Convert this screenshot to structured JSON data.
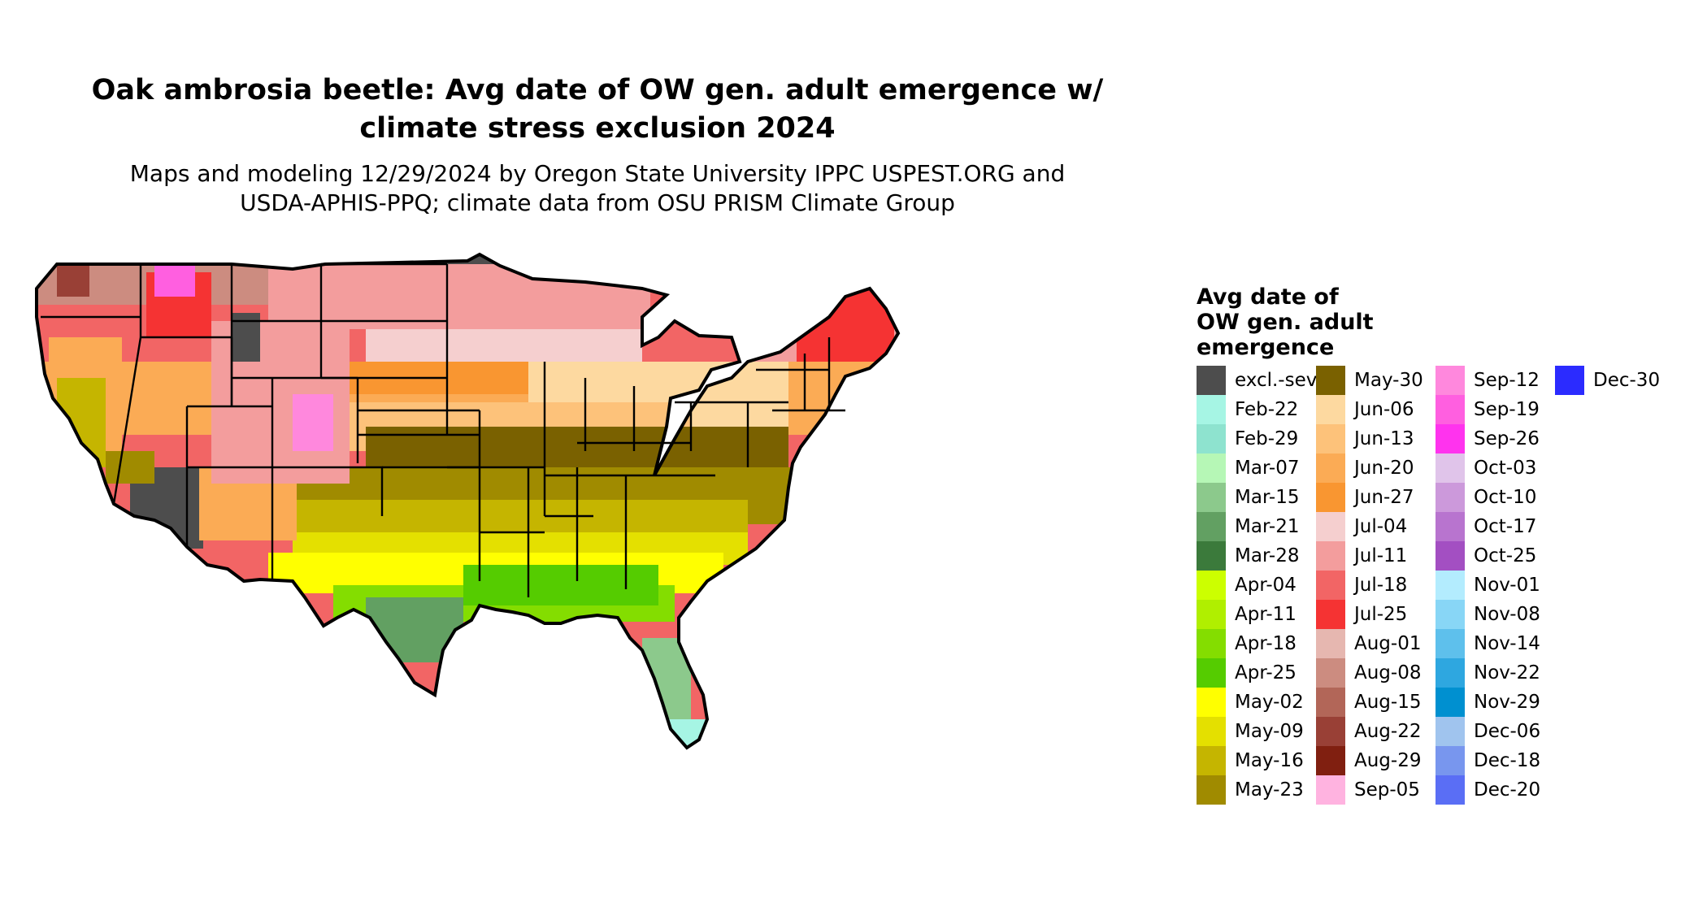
{
  "title_line1": "Oak ambrosia beetle: Avg date of OW gen. adult emergence w/",
  "title_line2": "climate stress exclusion 2024",
  "subtitle_line1": "Maps and modeling 12/29/2024 by Oregon State University IPPC USPEST.ORG and",
  "subtitle_line2": "USDA-APHIS-PPQ; climate data from OSU PRISM Climate Group",
  "legend": {
    "title_line1": "Avg date of",
    "title_line2": "OW gen. adult",
    "title_line3": "emergence",
    "items": [
      {
        "label": "excl.-sev.",
        "color": "#4d4d4d"
      },
      {
        "label": "Feb-22",
        "color": "#a6f5e4"
      },
      {
        "label": "Feb-29",
        "color": "#8ee3cf"
      },
      {
        "label": "Mar-07",
        "color": "#b6f7b6"
      },
      {
        "label": "Mar-15",
        "color": "#8cc98c"
      },
      {
        "label": "Mar-21",
        "color": "#62a062"
      },
      {
        "label": "Mar-28",
        "color": "#3b7a3b"
      },
      {
        "label": "Apr-04",
        "color": "#ccff00"
      },
      {
        "label": "Apr-11",
        "color": "#b0ef00"
      },
      {
        "label": "Apr-18",
        "color": "#84dd00"
      },
      {
        "label": "Apr-25",
        "color": "#55cc00"
      },
      {
        "label": "May-02",
        "color": "#ffff00"
      },
      {
        "label": "May-09",
        "color": "#e4e000"
      },
      {
        "label": "May-16",
        "color": "#c5b500"
      },
      {
        "label": "May-23",
        "color": "#a08b00"
      },
      {
        "label": "May-30",
        "color": "#7a6100"
      },
      {
        "label": "Jun-06",
        "color": "#fdd9a0"
      },
      {
        "label": "Jun-13",
        "color": "#fdc27a"
      },
      {
        "label": "Jun-20",
        "color": "#fbab55"
      },
      {
        "label": "Jun-27",
        "color": "#f99631"
      },
      {
        "label": "Jul-04",
        "color": "#f5cfcf"
      },
      {
        "label": "Jul-11",
        "color": "#f39d9d"
      },
      {
        "label": "Jul-18",
        "color": "#f26565"
      },
      {
        "label": "Jul-25",
        "color": "#f53333"
      },
      {
        "label": "Aug-01",
        "color": "#e6b7b0"
      },
      {
        "label": "Aug-08",
        "color": "#cc8c80"
      },
      {
        "label": "Aug-15",
        "color": "#b26658"
      },
      {
        "label": "Aug-22",
        "color": "#994036"
      },
      {
        "label": "Aug-29",
        "color": "#801f10"
      },
      {
        "label": "Sep-05",
        "color": "#ffb3e0"
      },
      {
        "label": "Sep-12",
        "color": "#ff88dd"
      },
      {
        "label": "Sep-19",
        "color": "#ff5fe0"
      },
      {
        "label": "Sep-26",
        "color": "#ff33ee"
      },
      {
        "label": "Oct-03",
        "color": "#e0c4ea"
      },
      {
        "label": "Oct-10",
        "color": "#cc99db"
      },
      {
        "label": "Oct-17",
        "color": "#b874cf"
      },
      {
        "label": "Oct-25",
        "color": "#a34fc2"
      },
      {
        "label": "Nov-01",
        "color": "#b3ecfe"
      },
      {
        "label": "Nov-08",
        "color": "#88d6f6"
      },
      {
        "label": "Nov-14",
        "color": "#5ec0ec"
      },
      {
        "label": "Nov-22",
        "color": "#2ea7e0"
      },
      {
        "label": "Nov-29",
        "color": "#0090d0"
      },
      {
        "label": "Dec-06",
        "color": "#a0c4ee"
      },
      {
        "label": "Dec-18",
        "color": "#7896ee"
      },
      {
        "label": "Dec-20",
        "color": "#5a6ef5"
      },
      {
        "label": "Dec-30",
        "color": "#2b2bff"
      }
    ]
  }
}
